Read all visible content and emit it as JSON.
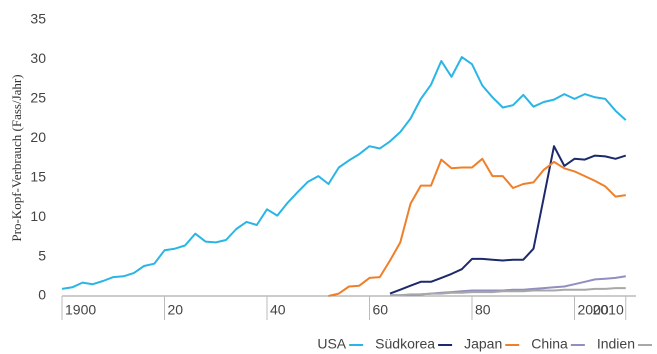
{
  "chart_data": {
    "type": "line",
    "y_label": "Pro-Kopf-Verbrauch (Fass/Jahr)",
    "x": [
      1900,
      1902,
      1904,
      1906,
      1908,
      1910,
      1912,
      1914,
      1916,
      1918,
      1920,
      1922,
      1924,
      1926,
      1928,
      1930,
      1932,
      1934,
      1936,
      1938,
      1940,
      1942,
      1944,
      1946,
      1948,
      1950,
      1952,
      1954,
      1956,
      1958,
      1960,
      1962,
      1964,
      1966,
      1968,
      1970,
      1972,
      1974,
      1976,
      1978,
      1980,
      1982,
      1984,
      1986,
      1988,
      1990,
      1992,
      1994,
      1996,
      1998,
      2000,
      2002,
      2004,
      2006,
      2008,
      2010
    ],
    "series": [
      {
        "name": "USA",
        "color": "#2bb5e6",
        "values": [
          0.9,
          1.1,
          1.7,
          1.5,
          1.9,
          2.4,
          2.5,
          2.9,
          3.8,
          4.1,
          5.8,
          6.0,
          6.4,
          7.9,
          6.9,
          6.8,
          7.1,
          8.5,
          9.4,
          9.0,
          11.0,
          10.2,
          11.8,
          13.2,
          14.5,
          15.2,
          14.2,
          16.3,
          17.2,
          18.0,
          19.0,
          18.7,
          19.6,
          20.8,
          22.5,
          25.0,
          26.8,
          29.8,
          27.8,
          30.3,
          29.4,
          26.7,
          25.2,
          23.9,
          24.2,
          25.5,
          24.0,
          24.6,
          24.9,
          25.6,
          25.0,
          25.6,
          25.2,
          25.0,
          23.5,
          22.3
        ]
      },
      {
        "name": "Südkorea",
        "color": "#1c2a6b",
        "values": [
          null,
          null,
          null,
          null,
          null,
          null,
          null,
          null,
          null,
          null,
          null,
          null,
          null,
          null,
          null,
          null,
          null,
          null,
          null,
          null,
          null,
          null,
          null,
          null,
          null,
          null,
          null,
          null,
          null,
          null,
          null,
          null,
          0.3,
          0.8,
          1.3,
          1.8,
          1.8,
          2.3,
          2.8,
          3.4,
          4.7,
          4.7,
          4.6,
          4.5,
          4.6,
          4.6,
          6.0,
          12.5,
          19.0,
          16.5,
          17.4,
          17.3,
          17.8,
          17.7,
          17.4,
          17.8
        ]
      },
      {
        "name": "Japan",
        "color": "#f07f2a",
        "values": [
          null,
          null,
          null,
          null,
          null,
          null,
          null,
          null,
          null,
          null,
          null,
          null,
          null,
          null,
          null,
          null,
          null,
          null,
          null,
          null,
          null,
          null,
          null,
          null,
          null,
          null,
          0,
          0.3,
          1.2,
          1.3,
          2.3,
          2.4,
          4.5,
          6.8,
          11.7,
          14.0,
          14.0,
          17.3,
          16.2,
          16.3,
          16.3,
          17.4,
          15.2,
          15.2,
          13.7,
          14.2,
          14.4,
          16.0,
          17.0,
          16.2,
          15.8,
          15.2,
          14.6,
          13.9,
          12.6,
          12.8
        ]
      },
      {
        "name": "China",
        "color": "#8f8fc0",
        "values": [
          null,
          null,
          null,
          null,
          null,
          null,
          null,
          null,
          null,
          null,
          null,
          null,
          null,
          null,
          null,
          null,
          null,
          null,
          null,
          null,
          null,
          null,
          null,
          null,
          null,
          null,
          null,
          null,
          null,
          null,
          null,
          null,
          0.1,
          0.1,
          0.1,
          0.2,
          0.3,
          0.4,
          0.5,
          0.6,
          0.7,
          0.7,
          0.7,
          0.7,
          0.8,
          0.8,
          0.9,
          1.0,
          1.1,
          1.2,
          1.5,
          1.8,
          2.1,
          2.2,
          2.3,
          2.5
        ]
      },
      {
        "name": "Indien",
        "color": "#a8a8a8",
        "values": [
          null,
          null,
          null,
          null,
          null,
          null,
          null,
          null,
          null,
          null,
          null,
          null,
          null,
          null,
          null,
          null,
          null,
          null,
          null,
          null,
          null,
          null,
          null,
          null,
          null,
          null,
          null,
          null,
          null,
          null,
          null,
          null,
          0.1,
          0.1,
          0.2,
          0.2,
          0.3,
          0.3,
          0.4,
          0.4,
          0.5,
          0.5,
          0.5,
          0.6,
          0.6,
          0.6,
          0.7,
          0.7,
          0.7,
          0.8,
          0.8,
          0.8,
          0.9,
          0.9,
          1.0,
          1.0
        ]
      }
    ],
    "xlim": [
      1900,
      2012
    ],
    "xticks": [
      1900,
      {
        "value": 1920,
        "label": "20"
      },
      {
        "value": 1940,
        "label": "40"
      },
      {
        "value": 1960,
        "label": "60"
      },
      {
        "value": 1980,
        "label": "80"
      },
      2000,
      2010
    ],
    "ylim": [
      0,
      35
    ],
    "yticks": [
      0,
      5,
      10,
      15,
      20,
      25,
      30,
      35
    ],
    "grid": false,
    "legend": "bottom-right"
  }
}
